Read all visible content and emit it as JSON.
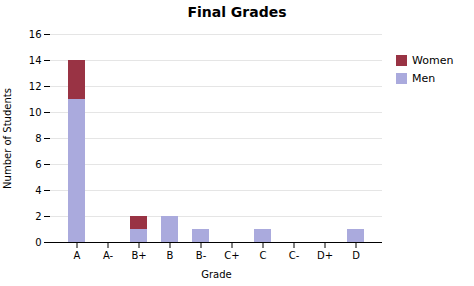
{
  "chart_data": {
    "type": "bar",
    "stacked": true,
    "title": "Final Grades",
    "xlabel": "Grade",
    "ylabel": "Number of Students",
    "categories": [
      "A",
      "A-",
      "B+",
      "B",
      "B-",
      "C+",
      "C",
      "C-",
      "D+",
      "D"
    ],
    "series": [
      {
        "name": "Men",
        "color": "#aaaadd",
        "values": [
          11,
          0,
          1,
          2,
          1,
          0,
          1,
          0,
          0,
          1
        ]
      },
      {
        "name": "Women",
        "color": "#993344",
        "values": [
          3,
          0,
          1,
          0,
          0,
          0,
          0,
          0,
          0,
          0
        ]
      }
    ],
    "ylim": [
      0,
      16
    ],
    "yticks": [
      0,
      2,
      4,
      6,
      8,
      10,
      12,
      14,
      16
    ],
    "grid": true,
    "legend": "right"
  }
}
